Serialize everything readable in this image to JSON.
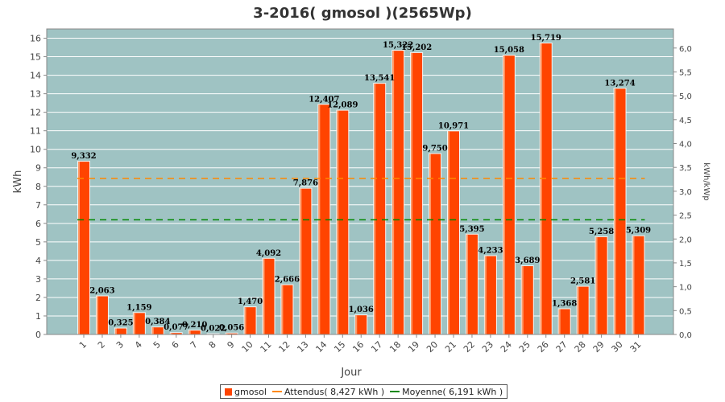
{
  "chart_data": {
    "type": "bar",
    "title": "3-2016( gmosol )(2565Wp)",
    "xlabel": "Jour",
    "ylabel": "kWh",
    "ylabel_right": "kWh/kWp",
    "ylim": [
      0,
      16.5
    ],
    "ylim_right": [
      0,
      6.4
    ],
    "y_ticks": [
      "0",
      "1",
      "2",
      "3",
      "4",
      "5",
      "6",
      "7",
      "8",
      "9",
      "10",
      "11",
      "12",
      "13",
      "14",
      "15",
      "16"
    ],
    "y_right_ticks": [
      "0,0",
      "0,5",
      "1,0",
      "1,5",
      "2,0",
      "2,5",
      "3,0",
      "3,5",
      "4,0",
      "4,5",
      "5,0",
      "5,5",
      "6,0"
    ],
    "categories": [
      "1",
      "2",
      "3",
      "4",
      "5",
      "6",
      "7",
      "8",
      "9",
      "10",
      "11",
      "12",
      "13",
      "14",
      "15",
      "16",
      "17",
      "18",
      "19",
      "20",
      "21",
      "22",
      "23",
      "24",
      "25",
      "26",
      "27",
      "28",
      "29",
      "30",
      "31"
    ],
    "series": [
      {
        "name": "gmosol",
        "color": "#ff4400",
        "values": [
          9.332,
          2.063,
          0.325,
          1.159,
          0.384,
          0.077,
          0.21,
          0.022,
          0.056,
          1.47,
          4.092,
          2.666,
          7.876,
          12.407,
          12.089,
          1.036,
          13.541,
          15.322,
          15.202,
          9.75,
          10.971,
          5.395,
          4.233,
          15.058,
          3.689,
          15.719,
          1.368,
          2.581,
          5.258,
          13.274,
          5.309
        ],
        "labels": [
          "9,332",
          "2,063",
          "0,325",
          "1,159",
          "0,384",
          "0,077",
          "0,210",
          "0,022",
          "0,056",
          "1,470",
          "4,092",
          "2,666",
          "7,876",
          "12,407",
          "12,089",
          "1,036",
          "13,541",
          "15,322",
          "15,202",
          "9,750",
          "10,971",
          "5,395",
          "4,233",
          "15,058",
          "3,689",
          "15,719",
          "1,368",
          "2,581",
          "5,258",
          "13,274",
          "5,309"
        ]
      }
    ],
    "reference_lines": [
      {
        "name": "Attendus( 8,427 kWh )",
        "value": 8.427,
        "color": "#ff8800",
        "style": "dashed"
      },
      {
        "name": "Moyenne( 6,191 kWh )",
        "value": 6.191,
        "color": "#008800",
        "style": "dashed"
      }
    ],
    "legend": "bottom",
    "grid": true,
    "plot_background": "#9fc3c3",
    "grid_color": "#ffffff"
  }
}
